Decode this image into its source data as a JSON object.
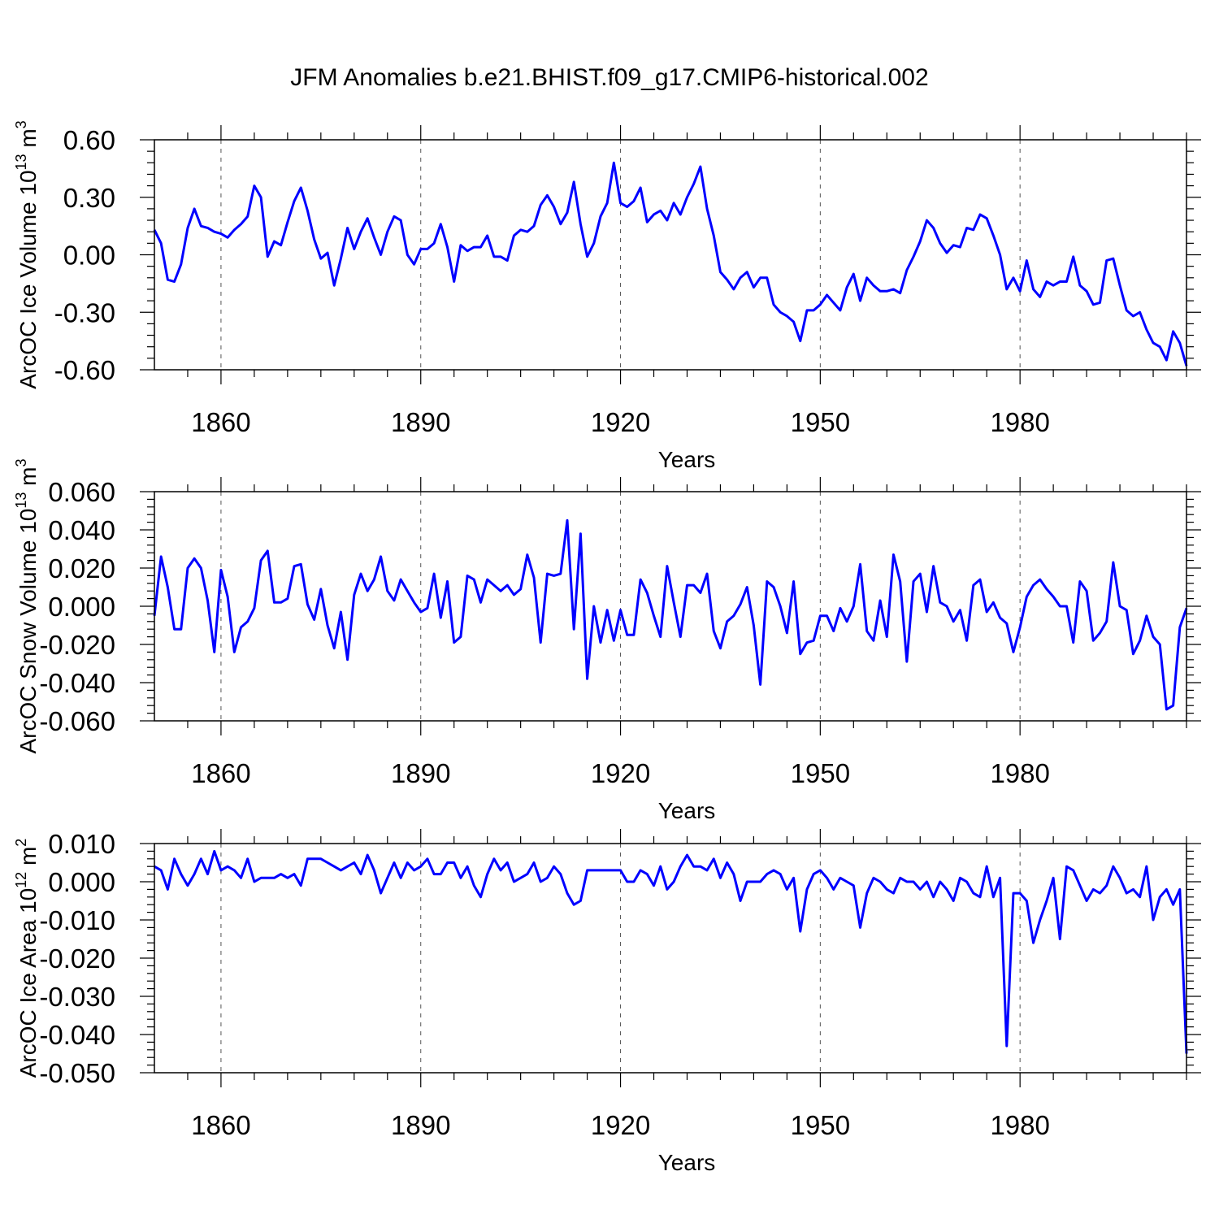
{
  "figure_title": "JFM Anomalies b.e21.BHIST.f09_g17.CMIP6-historical.002",
  "colors": {
    "line": "#0000ff",
    "axis": "#000000",
    "grid": "#555555",
    "background": "#ffffff"
  },
  "chart_data": [
    {
      "type": "line",
      "id": "ice-volume",
      "title": "",
      "xlabel": "Years",
      "ylabel_main": "ArcOC Ice Volume 10",
      "ylabel_sup": "13",
      "ylabel_unit": " m",
      "ylabel_unit_sup": "3",
      "xlim": [
        1850,
        2005
      ],
      "ylim": [
        -0.6,
        0.6
      ],
      "xticks": [
        1860,
        1890,
        1920,
        1950,
        1980
      ],
      "xtick_labels": [
        "1860",
        "1890",
        "1920",
        "1950",
        "1980"
      ],
      "yticks": [
        0.6,
        0.3,
        0.0,
        -0.3,
        -0.6
      ],
      "ytick_labels": [
        "0.60",
        "0.30",
        "0.00",
        "-0.30",
        "-0.60"
      ],
      "x_start": 1850,
      "x_step": 1,
      "series": [
        {
          "name": "ArcOC Ice Volume",
          "values": [
            0.13,
            0.06,
            -0.13,
            -0.14,
            -0.05,
            0.14,
            0.24,
            0.15,
            0.14,
            0.12,
            0.11,
            0.09,
            0.13,
            0.16,
            0.2,
            0.36,
            0.3,
            -0.01,
            0.07,
            0.05,
            0.17,
            0.28,
            0.35,
            0.23,
            0.08,
            -0.02,
            0.01,
            -0.16,
            -0.02,
            0.14,
            0.03,
            0.12,
            0.19,
            0.09,
            0.0,
            0.12,
            0.2,
            0.18,
            0.0,
            -0.05,
            0.03,
            0.03,
            0.06,
            0.16,
            0.04,
            -0.14,
            0.05,
            0.02,
            0.04,
            0.04,
            0.1,
            -0.01,
            -0.01,
            -0.03,
            0.1,
            0.13,
            0.12,
            0.15,
            0.26,
            0.31,
            0.25,
            0.16,
            0.22,
            0.38,
            0.16,
            -0.01,
            0.06,
            0.2,
            0.27,
            0.48,
            0.27,
            0.25,
            0.28,
            0.35,
            0.17,
            0.21,
            0.23,
            0.18,
            0.27,
            0.21,
            0.3,
            0.37,
            0.46,
            0.24,
            0.1,
            -0.09,
            -0.13,
            -0.18,
            -0.12,
            -0.09,
            -0.17,
            -0.12,
            -0.12,
            -0.26,
            -0.3,
            -0.32,
            -0.35,
            -0.45,
            -0.29,
            -0.29,
            -0.26,
            -0.21,
            -0.25,
            -0.29,
            -0.17,
            -0.1,
            -0.24,
            -0.12,
            -0.16,
            -0.19,
            -0.19,
            -0.18,
            -0.2,
            -0.08,
            -0.01,
            0.07,
            0.18,
            0.14,
            0.06,
            0.01,
            0.05,
            0.04,
            0.14,
            0.13,
            0.21,
            0.19,
            0.1,
            0.0,
            -0.18,
            -0.12,
            -0.19,
            -0.03,
            -0.18,
            -0.22,
            -0.14,
            -0.16,
            -0.14,
            -0.14,
            -0.01,
            -0.16,
            -0.19,
            -0.26,
            -0.25,
            -0.03,
            -0.02,
            -0.16,
            -0.29,
            -0.32,
            -0.3,
            -0.39,
            -0.46,
            -0.48,
            -0.55,
            -0.4,
            -0.46,
            -0.58
          ]
        }
      ]
    },
    {
      "type": "line",
      "id": "snow-volume",
      "title": "",
      "xlabel": "Years",
      "ylabel_main": "ArcOC Snow Volume 10",
      "ylabel_sup": "13",
      "ylabel_unit": " m",
      "ylabel_unit_sup": "3",
      "xlim": [
        1850,
        2005
      ],
      "ylim": [
        -0.06,
        0.06
      ],
      "xticks": [
        1860,
        1890,
        1920,
        1950,
        1980
      ],
      "xtick_labels": [
        "1860",
        "1890",
        "1920",
        "1950",
        "1980"
      ],
      "yticks": [
        0.06,
        0.04,
        0.02,
        0.0,
        -0.02,
        -0.04,
        -0.06
      ],
      "ytick_labels": [
        "0.060",
        "0.040",
        "0.020",
        "0.000",
        "-0.020",
        "-0.040",
        "-0.060"
      ],
      "x_start": 1850,
      "x_step": 1,
      "series": [
        {
          "name": "ArcOC Snow Volume",
          "values": [
            -0.005,
            0.026,
            0.01,
            -0.012,
            -0.012,
            0.02,
            0.025,
            0.02,
            0.003,
            -0.024,
            0.019,
            0.005,
            -0.024,
            -0.011,
            -0.008,
            -0.001,
            0.024,
            0.029,
            0.002,
            0.002,
            0.004,
            0.021,
            0.022,
            0.001,
            -0.007,
            0.009,
            -0.01,
            -0.022,
            -0.003,
            -0.028,
            0.006,
            0.017,
            0.008,
            0.014,
            0.026,
            0.008,
            0.003,
            0.014,
            0.008,
            0.002,
            -0.003,
            -0.001,
            0.017,
            -0.006,
            0.013,
            -0.019,
            -0.016,
            0.016,
            0.014,
            0.002,
            0.014,
            0.011,
            0.008,
            0.011,
            0.006,
            0.009,
            0.027,
            0.015,
            -0.019,
            0.017,
            0.016,
            0.017,
            0.045,
            -0.012,
            0.038,
            -0.038,
            0.0,
            -0.019,
            -0.002,
            -0.018,
            -0.002,
            -0.015,
            -0.015,
            0.014,
            0.007,
            -0.005,
            -0.016,
            0.021,
            0.002,
            -0.016,
            0.011,
            0.011,
            0.007,
            0.017,
            -0.013,
            -0.022,
            -0.008,
            -0.005,
            0.001,
            0.01,
            -0.01,
            -0.041,
            0.013,
            0.01,
            0.0,
            -0.014,
            0.013,
            -0.025,
            -0.019,
            -0.018,
            -0.005,
            -0.005,
            -0.013,
            -0.001,
            -0.008,
            0.0,
            0.022,
            -0.013,
            -0.018,
            0.003,
            -0.016,
            0.027,
            0.013,
            -0.029,
            0.013,
            0.017,
            -0.003,
            0.021,
            0.002,
            0.0,
            -0.008,
            -0.002,
            -0.018,
            0.011,
            0.014,
            -0.003,
            0.002,
            -0.006,
            -0.009,
            -0.024,
            -0.011,
            0.005,
            0.011,
            0.014,
            0.009,
            0.005,
            0.0,
            0.0,
            -0.019,
            0.013,
            0.008,
            -0.018,
            -0.014,
            -0.008,
            0.023,
            0.0,
            -0.002,
            -0.025,
            -0.018,
            -0.005,
            -0.016,
            -0.02,
            -0.054,
            -0.052,
            -0.011,
            -0.001
          ]
        }
      ]
    },
    {
      "type": "line",
      "id": "ice-area",
      "title": "",
      "xlabel": "Years",
      "ylabel_main": "ArcOC Ice Area 10",
      "ylabel_sup": "12",
      "ylabel_unit": " m",
      "ylabel_unit_sup": "2",
      "xlim": [
        1850,
        2005
      ],
      "ylim": [
        -0.05,
        0.01
      ],
      "xticks": [
        1860,
        1890,
        1920,
        1950,
        1980
      ],
      "xtick_labels": [
        "1860",
        "1890",
        "1920",
        "1950",
        "1980"
      ],
      "yticks": [
        0.01,
        0.0,
        -0.01,
        -0.02,
        -0.03,
        -0.04,
        -0.05
      ],
      "ytick_labels": [
        "0.010",
        "0.000",
        "-0.010",
        "-0.020",
        "-0.030",
        "-0.040",
        "-0.050"
      ],
      "x_start": 1850,
      "x_step": 1,
      "series": [
        {
          "name": "ArcOC Ice Area",
          "values": [
            0.004,
            0.003,
            -0.002,
            0.006,
            0.002,
            -0.001,
            0.002,
            0.006,
            0.002,
            0.008,
            0.003,
            0.004,
            0.003,
            0.001,
            0.006,
            0.0,
            0.001,
            0.001,
            0.001,
            0.002,
            0.001,
            0.002,
            -0.001,
            0.006,
            0.006,
            0.006,
            0.005,
            0.004,
            0.003,
            0.004,
            0.005,
            0.002,
            0.007,
            0.003,
            -0.003,
            0.001,
            0.005,
            0.001,
            0.005,
            0.003,
            0.004,
            0.006,
            0.002,
            0.002,
            0.005,
            0.005,
            0.001,
            0.004,
            -0.001,
            -0.004,
            0.002,
            0.006,
            0.003,
            0.005,
            0.0,
            0.001,
            0.002,
            0.005,
            0.0,
            0.001,
            0.004,
            0.002,
            -0.003,
            -0.006,
            -0.005,
            0.003,
            0.003,
            0.003,
            0.003,
            0.003,
            0.003,
            0.0,
            0.0,
            0.003,
            0.002,
            -0.001,
            0.004,
            -0.002,
            0.0,
            0.004,
            0.007,
            0.004,
            0.004,
            0.003,
            0.006,
            0.001,
            0.005,
            0.002,
            -0.005,
            0.0,
            0.0,
            0.0,
            0.002,
            0.003,
            0.002,
            -0.002,
            0.001,
            -0.013,
            -0.002,
            0.002,
            0.003,
            0.001,
            -0.002,
            0.001,
            0.0,
            -0.001,
            -0.012,
            -0.003,
            0.001,
            0.0,
            -0.002,
            -0.003,
            0.001,
            0.0,
            0.0,
            -0.002,
            0.0,
            -0.004,
            0.0,
            -0.002,
            -0.005,
            0.001,
            0.0,
            -0.003,
            -0.004,
            0.004,
            -0.004,
            0.001,
            -0.043,
            -0.003,
            -0.003,
            -0.005,
            -0.016,
            -0.01,
            -0.005,
            0.001,
            -0.015,
            0.004,
            0.003,
            -0.001,
            -0.005,
            -0.002,
            -0.003,
            -0.001,
            0.004,
            0.001,
            -0.003,
            -0.002,
            -0.004,
            0.004,
            -0.01,
            -0.004,
            -0.002,
            -0.006,
            -0.002,
            -0.045
          ]
        }
      ]
    }
  ]
}
